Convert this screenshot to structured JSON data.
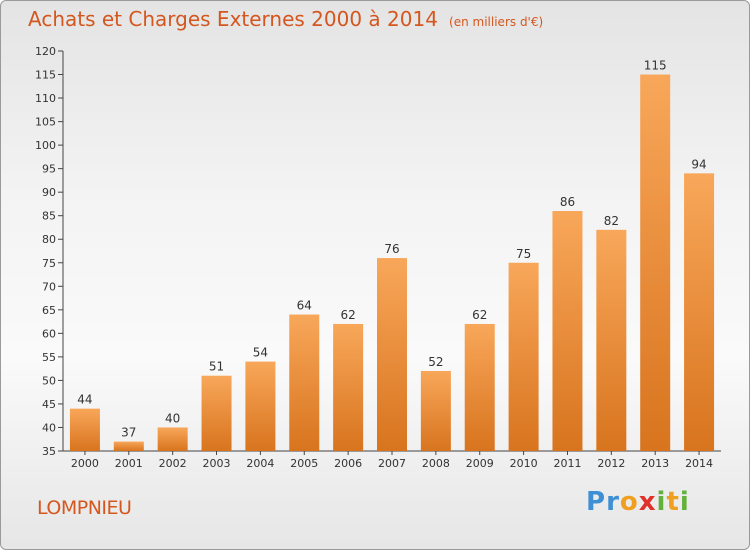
{
  "header": {
    "title": "Achats et Charges Externes 2000 à 2014",
    "unit": "(en milliers d'€)"
  },
  "footer": {
    "city": "LOMPNIEU",
    "brand": "Proxiti"
  },
  "colors": {
    "bar_light": "#f8a75a",
    "bar_dark": "#d8741e",
    "title": "#d4571f"
  },
  "chart_data": {
    "type": "bar",
    "title": "Achats et Charges Externes 2000 à 2014",
    "subtitle": "(en milliers d'€)",
    "categories": [
      "2000",
      "2001",
      "2002",
      "2003",
      "2004",
      "2005",
      "2006",
      "2007",
      "2008",
      "2009",
      "2010",
      "2011",
      "2012",
      "2013",
      "2014"
    ],
    "values": [
      44,
      37,
      40,
      51,
      54,
      64,
      62,
      76,
      52,
      62,
      75,
      86,
      82,
      115,
      94
    ],
    "ylim": [
      35,
      120
    ],
    "yticks": [
      35,
      40,
      45,
      50,
      55,
      60,
      65,
      70,
      75,
      80,
      85,
      90,
      95,
      100,
      105,
      110,
      115,
      120
    ],
    "grid": false,
    "legend": "none"
  }
}
